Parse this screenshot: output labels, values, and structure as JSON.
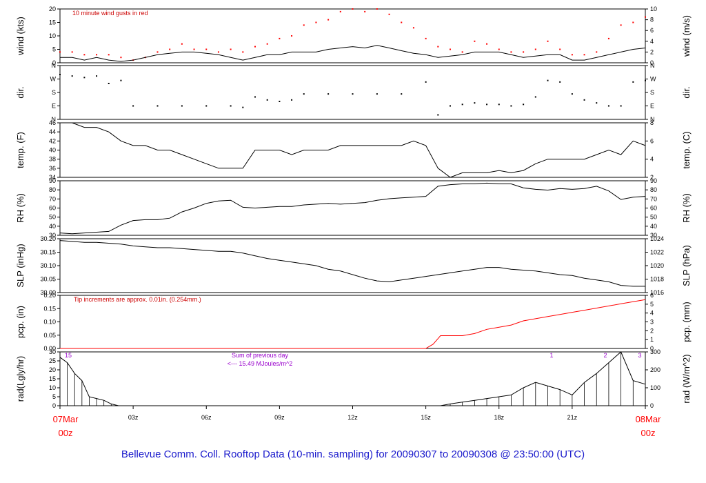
{
  "footer": "Bellevue Comm. Coll. Rooftop Data (10-min. sampling) for 20090307  to  20090308 @ 23:50:00  (UTC)",
  "colors": {
    "primary": "#000000",
    "gust": "#ff0000",
    "precip": "#ff0000",
    "note_red": "#cc0000",
    "note_purple": "#9900cc",
    "footer": "#1a1acc"
  },
  "time_axis": {
    "hours": [
      0,
      3,
      6,
      9,
      12,
      15,
      18,
      21,
      24
    ],
    "tick_labels": [
      "03z",
      "06z",
      "09z",
      "12z",
      "15z",
      "18z",
      "21z"
    ],
    "start_label": {
      "line1": "07Mar",
      "line2": "00z"
    },
    "end_label": {
      "line1": "08Mar",
      "line2": "00z"
    }
  },
  "panels": {
    "wind": {
      "left_label": "wind (kts)",
      "right_label": "wind (m/s)",
      "left_ticks": [
        "0",
        "5",
        "10",
        "15",
        "20"
      ],
      "right_ticks": [
        "0",
        "2",
        "4",
        "6",
        "8",
        "10"
      ],
      "note": "10  minute wind gusts in red"
    },
    "dir": {
      "left_label": "dir.",
      "right_label": "dir.",
      "left_ticks": [
        "N",
        "E",
        "S",
        "W",
        "N"
      ],
      "right_ticks": [
        "N",
        "E",
        "S",
        "W",
        "N"
      ]
    },
    "temp": {
      "left_label": "temp. (F)",
      "right_label": "temp. (C)",
      "left_ticks": [
        "34",
        "36",
        "38",
        "40",
        "42",
        "44",
        "46"
      ],
      "right_ticks": [
        "2",
        "4",
        "6",
        "8"
      ]
    },
    "rh": {
      "left_label": "RH (%)",
      "right_label": "RH (%)",
      "left_ticks": [
        "30",
        "40",
        "50",
        "60",
        "70",
        "80",
        "90"
      ],
      "right_ticks": [
        "30",
        "40",
        "50",
        "60",
        "70",
        "80",
        "90"
      ]
    },
    "slp": {
      "left_label": "SLP (inHg)",
      "right_label": "SLP (hPa)",
      "left_ticks": [
        "30.00",
        "30.05",
        "30.10",
        "30.15",
        "30.20"
      ],
      "right_ticks": [
        "1016",
        "1018",
        "1020",
        "1022",
        "1024"
      ]
    },
    "pcp": {
      "left_label": "pcp. (in)",
      "right_label": "pcp. (mm)",
      "left_ticks": [
        "0.00",
        "0.05",
        "0.10",
        "0.15",
        "0.20"
      ],
      "right_ticks": [
        "0",
        "1",
        "2",
        "3",
        "4",
        "5",
        "6"
      ],
      "note": "Tip increments are approx. 0.01in. (0.254mm.)"
    },
    "rad": {
      "left_label": "rad(Lgly/hr)",
      "right_label": "rad (W/m^2)",
      "left_ticks": [
        "0",
        "5",
        "10",
        "15",
        "20",
        "25",
        "30"
      ],
      "right_ticks": [
        "0",
        "100",
        "200",
        "300"
      ],
      "note_line1": "Sum of previous day",
      "note_line2": "<--- 15.49 MJoules/m^2",
      "top_labels": [
        "15",
        "1",
        "2",
        "3"
      ]
    }
  },
  "chart_data": [
    {
      "type": "line",
      "panel": "wind",
      "ylabel": "wind (kts)",
      "ylim": [
        0,
        20
      ],
      "series": [
        {
          "name": "10  minute wind gusts in red",
          "style": "dots",
          "color": "#ff0000",
          "x": [
            0,
            0.5,
            1,
            1.5,
            2,
            2.5,
            3,
            3.5,
            4,
            4.5,
            5,
            5.5,
            6,
            6.5,
            7,
            7.5,
            8,
            8.5,
            9,
            9.5,
            10,
            10.5,
            11,
            11.5,
            12,
            12.5,
            13,
            13.5,
            14,
            14.5,
            15,
            15.5,
            16,
            16.5,
            17,
            17.5,
            18,
            18.5,
            19,
            19.5,
            20,
            20.5,
            21,
            21.5,
            22,
            22.5,
            23,
            23.5,
            24
          ],
          "y": [
            4,
            4,
            3,
            3,
            3,
            2,
            1,
            2,
            4,
            5,
            7,
            5,
            5,
            4,
            5,
            4,
            6,
            7,
            9,
            10,
            14,
            15,
            16,
            19,
            20,
            19,
            20,
            18,
            15,
            13,
            9,
            6,
            5,
            4,
            8,
            7,
            5,
            4,
            4,
            5,
            8,
            5,
            3,
            3,
            4,
            9,
            14,
            15,
            17
          ]
        },
        {
          "name": "",
          "style": "line",
          "color": "#000000",
          "x": [
            0,
            0.5,
            1,
            1.5,
            2,
            2.5,
            3,
            3.5,
            4,
            4.5,
            5,
            5.5,
            6,
            6.5,
            7,
            7.5,
            8,
            8.5,
            9,
            9.5,
            10,
            10.5,
            11,
            11.5,
            12,
            12.5,
            13,
            13.5,
            14,
            14.5,
            15,
            15.5,
            16,
            16.5,
            17,
            17.5,
            18,
            18.5,
            19,
            19.5,
            20,
            20.5,
            21,
            21.5,
            22,
            22.5,
            23,
            23.5,
            24
          ],
          "y": [
            2,
            2,
            1,
            2,
            1,
            0.5,
            1,
            2,
            3,
            3.5,
            4,
            4,
            3.5,
            3,
            2,
            1,
            2,
            3,
            3,
            4,
            4,
            4,
            5,
            5.5,
            6,
            5.5,
            6.5,
            5.5,
            4.5,
            3.5,
            3,
            2,
            2.5,
            3,
            4,
            4,
            4,
            3,
            2,
            2.5,
            3,
            3,
            1,
            1,
            2,
            3,
            4,
            5,
            5.5
          ]
        }
      ]
    },
    {
      "type": "scatter",
      "panel": "dir",
      "ylabel": "dir.",
      "ylim": [
        0,
        360
      ],
      "y_ticks": [
        "N",
        "E",
        "S",
        "W",
        "N"
      ],
      "series": [
        {
          "name": "",
          "style": "dots",
          "color": "#000000",
          "x": [
            0,
            0.5,
            1,
            1.5,
            2,
            2.5,
            3,
            4,
            5,
            6,
            7,
            7.5,
            8,
            8.5,
            9,
            9.5,
            10,
            11,
            12,
            13,
            14,
            15,
            15.5,
            16,
            16.5,
            17,
            17.5,
            18,
            18.5,
            19,
            19.5,
            20,
            20.5,
            21,
            21.5,
            22,
            22.5,
            23,
            23.5,
            24
          ],
          "y": [
            300,
            290,
            280,
            290,
            240,
            260,
            90,
            90,
            90,
            90,
            90,
            80,
            150,
            130,
            120,
            130,
            170,
            170,
            170,
            170,
            170,
            250,
            30,
            90,
            100,
            110,
            100,
            100,
            90,
            100,
            150,
            260,
            250,
            170,
            130,
            110,
            90,
            90,
            250,
            260
          ]
        }
      ]
    },
    {
      "type": "line",
      "panel": "temp",
      "ylabel": "temp. (F)",
      "ylim": [
        34,
        46
      ],
      "series": [
        {
          "name": "",
          "style": "line",
          "color": "#000000",
          "x": [
            0,
            0.5,
            1,
            1.5,
            2,
            2.5,
            3,
            3.5,
            4,
            4.5,
            5,
            5.5,
            6,
            6.5,
            7,
            7.5,
            8,
            8.5,
            9,
            9.5,
            10,
            10.5,
            11,
            11.5,
            12,
            12.5,
            13,
            13.5,
            14,
            14.5,
            15,
            15.5,
            16,
            16.5,
            17,
            17.5,
            18,
            18.5,
            19,
            19.5,
            20,
            20.5,
            21,
            21.5,
            22,
            22.5,
            23,
            23.5,
            24
          ],
          "y": [
            46,
            46,
            45,
            45,
            44,
            42,
            41,
            41,
            40,
            40,
            39,
            38,
            37,
            36,
            36,
            36,
            40,
            40,
            40,
            39,
            40,
            40,
            40,
            41,
            41,
            41,
            41,
            41,
            41,
            42,
            41,
            36,
            34,
            35,
            35,
            35,
            35.5,
            35,
            35.5,
            37,
            38,
            38,
            38,
            38,
            39,
            40,
            39,
            42,
            41
          ]
        }
      ]
    },
    {
      "type": "line",
      "panel": "rh",
      "ylabel": "RH (%)",
      "ylim": [
        25,
        95
      ],
      "series": [
        {
          "name": "",
          "style": "line",
          "color": "#000000",
          "x": [
            0,
            0.5,
            1,
            1.5,
            2,
            2.5,
            3,
            3.5,
            4,
            4.5,
            5,
            5.5,
            6,
            6.5,
            7,
            7.5,
            8,
            8.5,
            9,
            9.5,
            10,
            10.5,
            11,
            11.5,
            12,
            12.5,
            13,
            13.5,
            14,
            14.5,
            15,
            15.5,
            16,
            16.5,
            17,
            17.5,
            18,
            18.5,
            19,
            19.5,
            20,
            20.5,
            21,
            21.5,
            22,
            22.5,
            23,
            23.5,
            24
          ],
          "y": [
            28,
            27,
            28,
            29,
            30,
            38,
            44,
            45,
            45,
            47,
            55,
            60,
            66,
            69,
            70,
            61,
            60,
            61,
            62,
            62,
            64,
            65,
            66,
            65,
            66,
            67,
            70,
            72,
            73,
            74,
            75,
            88,
            90,
            91,
            91,
            92,
            91,
            91,
            86,
            84,
            83,
            85,
            84,
            85,
            88,
            82,
            71,
            74,
            75
          ]
        }
      ]
    },
    {
      "type": "line",
      "panel": "slp",
      "ylabel": "SLP (inHg)",
      "ylim": [
        29.95,
        30.25
      ],
      "series": [
        {
          "name": "",
          "style": "line",
          "color": "#000000",
          "x": [
            0,
            0.5,
            1,
            1.5,
            2,
            2.5,
            3,
            3.5,
            4,
            4.5,
            5,
            5.5,
            6,
            6.5,
            7,
            7.5,
            8,
            8.5,
            9,
            9.5,
            10,
            10.5,
            11,
            11.5,
            12,
            12.5,
            13,
            13.5,
            14,
            14.5,
            15,
            15.5,
            16,
            16.5,
            17,
            17.5,
            18,
            18.5,
            19,
            19.5,
            20,
            20.5,
            21,
            21.5,
            22,
            22.5,
            23,
            23.5,
            24
          ],
          "y": [
            30.24,
            30.235,
            30.23,
            30.23,
            30.225,
            30.22,
            30.21,
            30.205,
            30.2,
            30.2,
            30.195,
            30.19,
            30.185,
            30.18,
            30.18,
            30.17,
            30.155,
            30.14,
            30.13,
            30.12,
            30.11,
            30.1,
            30.08,
            30.07,
            30.05,
            30.03,
            30.015,
            30.01,
            30.02,
            30.03,
            30.04,
            30.05,
            30.06,
            30.07,
            30.08,
            30.09,
            30.09,
            30.08,
            30.075,
            30.07,
            30.06,
            30.05,
            30.045,
            30.03,
            30.02,
            30.01,
            29.99,
            29.985,
            29.985
          ]
        }
      ]
    },
    {
      "type": "line",
      "panel": "pcp",
      "ylabel": "pcp. (in)",
      "ylim": [
        0,
        0.25
      ],
      "series": [
        {
          "name": "",
          "style": "line",
          "color": "#ff0000",
          "x": [
            0,
            15,
            15.3,
            15.6,
            16,
            16.5,
            17,
            17.5,
            18,
            18.5,
            19,
            19.5,
            20,
            20.5,
            21,
            21.5,
            22,
            22.5,
            23,
            23.5,
            24
          ],
          "y": [
            0,
            0,
            0.02,
            0.06,
            0.06,
            0.06,
            0.07,
            0.09,
            0.1,
            0.11,
            0.13,
            0.14,
            0.15,
            0.16,
            0.17,
            0.18,
            0.19,
            0.2,
            0.21,
            0.22,
            0.23
          ]
        }
      ]
    },
    {
      "type": "area",
      "panel": "rad",
      "ylabel": "rad(Lgly/hr)",
      "ylim": [
        0,
        30
      ],
      "series": [
        {
          "name": "",
          "style": "area",
          "color": "#000000",
          "x": [
            0,
            0.3,
            0.6,
            0.9,
            1.2,
            1.5,
            1.8,
            2.1,
            2.4,
            15.6,
            16,
            16.5,
            17,
            17.5,
            18,
            18.5,
            19,
            19.5,
            20,
            20.5,
            21,
            21.5,
            22,
            22.5,
            23,
            23.5,
            24
          ],
          "y": [
            27,
            24,
            18,
            14,
            5,
            4,
            3,
            1,
            0,
            0,
            1,
            2,
            3,
            4,
            5,
            6,
            10,
            13,
            11,
            9,
            6,
            13,
            18,
            24,
            30,
            14,
            12
          ]
        }
      ]
    }
  ]
}
